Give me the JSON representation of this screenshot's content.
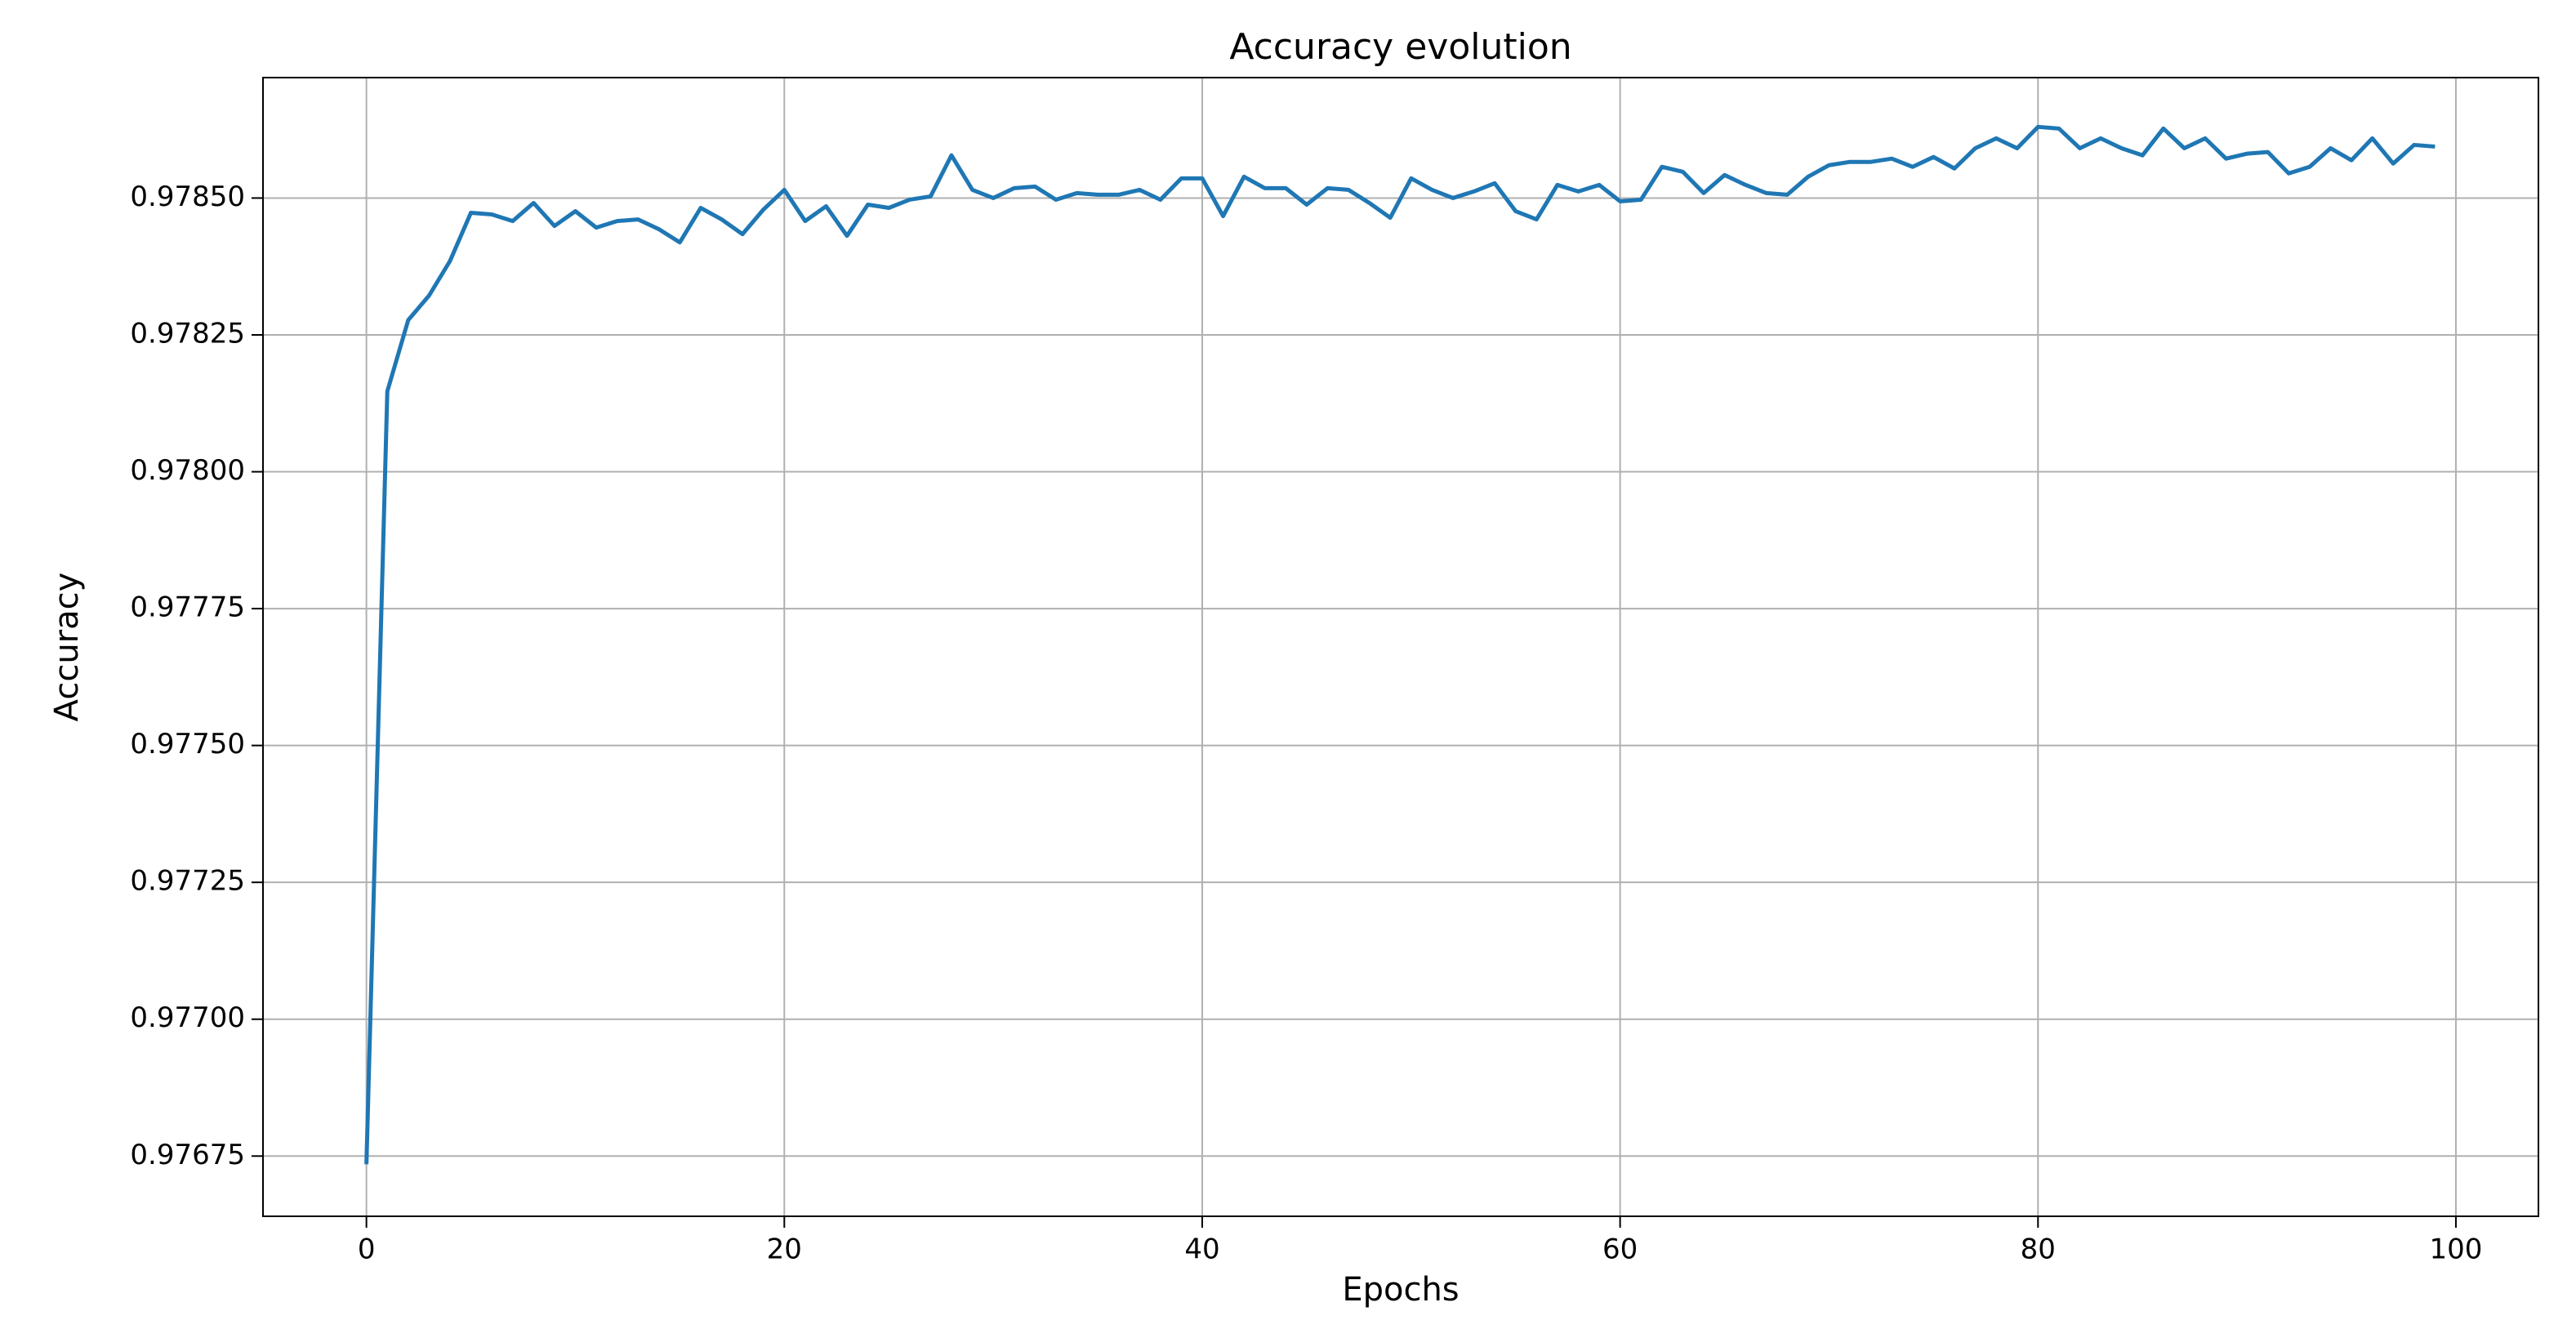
{
  "chart_data": {
    "type": "line",
    "title": "Accuracy evolution",
    "x_label": "Epochs",
    "y_label": "Accuracy",
    "x": [
      0,
      1,
      2,
      3,
      4,
      5,
      6,
      7,
      8,
      9,
      10,
      11,
      12,
      13,
      14,
      15,
      16,
      17,
      18,
      19,
      20,
      21,
      22,
      23,
      24,
      25,
      26,
      27,
      28,
      29,
      30,
      31,
      32,
      33,
      34,
      35,
      36,
      37,
      38,
      39,
      40,
      41,
      42,
      43,
      44,
      45,
      46,
      47,
      48,
      49,
      50,
      51,
      52,
      53,
      54,
      55,
      56,
      57,
      58,
      59,
      60,
      61,
      62,
      63,
      64,
      65,
      66,
      67,
      68,
      69,
      70,
      71,
      72,
      73,
      74,
      75,
      76,
      77,
      78,
      79,
      80,
      81,
      82,
      83,
      84,
      85,
      86,
      87,
      88,
      89,
      90,
      91,
      92,
      93,
      94,
      95,
      96,
      97,
      98,
      99
    ],
    "series": [
      {
        "name": "Accuracy",
        "color": "#1f77b4",
        "values": [
          0.976735,
          0.978147,
          0.978277,
          0.978322,
          0.978385,
          0.978473,
          0.97847,
          0.978458,
          0.978491,
          0.978449,
          0.978476,
          0.978446,
          0.978458,
          0.978461,
          0.978443,
          0.978419,
          0.978482,
          0.978461,
          0.978434,
          0.978479,
          0.978515,
          0.978458,
          0.978485,
          0.978431,
          0.978488,
          0.978482,
          0.978497,
          0.978503,
          0.978578,
          0.978515,
          0.9785,
          0.978518,
          0.978521,
          0.978497,
          0.978509,
          0.978506,
          0.978506,
          0.978515,
          0.978497,
          0.978536,
          0.978536,
          0.978467,
          0.978539,
          0.978518,
          0.978518,
          0.978488,
          0.978518,
          0.978515,
          0.978491,
          0.978464,
          0.978536,
          0.978515,
          0.9785,
          0.978512,
          0.978527,
          0.978476,
          0.978461,
          0.978524,
          0.978512,
          0.978524,
          0.978494,
          0.978497,
          0.978557,
          0.978548,
          0.978509,
          0.978542,
          0.978524,
          0.978509,
          0.978506,
          0.978539,
          0.97856,
          0.978566,
          0.978566,
          0.978572,
          0.978557,
          0.978575,
          0.978554,
          0.978591,
          0.978609,
          0.978591,
          0.97863,
          0.978627,
          0.978591,
          0.978609,
          0.978591,
          0.978578,
          0.978627,
          0.978591,
          0.978609,
          0.978572,
          0.978581,
          0.978584,
          0.978545,
          0.978557,
          0.978591,
          0.978569,
          0.978609,
          0.978563,
          0.978597,
          0.978594
        ]
      }
    ],
    "xlim": [
      -4.95,
      103.95
    ],
    "xticks": [
      0,
      20,
      40,
      60,
      80,
      100
    ],
    "ylim": [
      0.97664,
      0.97872
    ],
    "yticks": [
      {
        "value": 0.97675,
        "label": "0.97675"
      },
      {
        "value": 0.977,
        "label": "0.97700"
      },
      {
        "value": 0.97725,
        "label": "0.97725"
      },
      {
        "value": 0.9775,
        "label": "0.97750"
      },
      {
        "value": 0.97775,
        "label": "0.97775"
      },
      {
        "value": 0.978,
        "label": "0.97800"
      },
      {
        "value": 0.97825,
        "label": "0.97825"
      },
      {
        "value": 0.9785,
        "label": "0.97850"
      }
    ],
    "grid": true
  }
}
